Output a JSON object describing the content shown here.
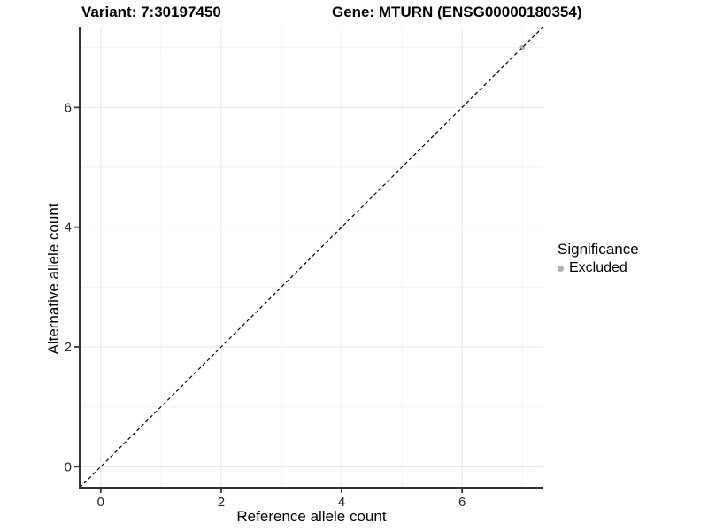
{
  "header": {
    "title_left": "Variant: 7:30197450",
    "title_right": "Gene: MTURN (ENSG00000180354)"
  },
  "chart_data": {
    "type": "scatter",
    "title": "Variant: 7:30197450    Gene: MTURN (ENSG00000180354)",
    "xlabel": "Reference allele count",
    "ylabel": "Alternative allele count",
    "xlim": [
      -0.35,
      7.35
    ],
    "ylim": [
      -0.35,
      7.35
    ],
    "x_ticks": [
      0,
      2,
      4,
      6
    ],
    "y_ticks": [
      0,
      2,
      4,
      6
    ],
    "x_minor_gridlines": [
      1,
      3,
      5,
      7
    ],
    "y_minor_gridlines": [
      1,
      3,
      5,
      7
    ],
    "grid": true,
    "points": [
      {
        "x": 7,
        "y": 7,
        "series": "Excluded"
      }
    ],
    "reference_line": {
      "slope": 1,
      "intercept": 0,
      "style": "dashed",
      "color": "#000000"
    },
    "legend": {
      "title": "Significance",
      "position": "right",
      "entries": [
        {
          "label": "Excluded",
          "color": "#b0b0b0",
          "marker": "circle"
        }
      ]
    },
    "colors": {
      "background": "#ffffff",
      "grid_major": "#e7e7e7",
      "grid_minor": "#f2f2f2",
      "axis_line": "#333333",
      "tick_text": "#262626",
      "point": "#b0b0b0"
    }
  }
}
